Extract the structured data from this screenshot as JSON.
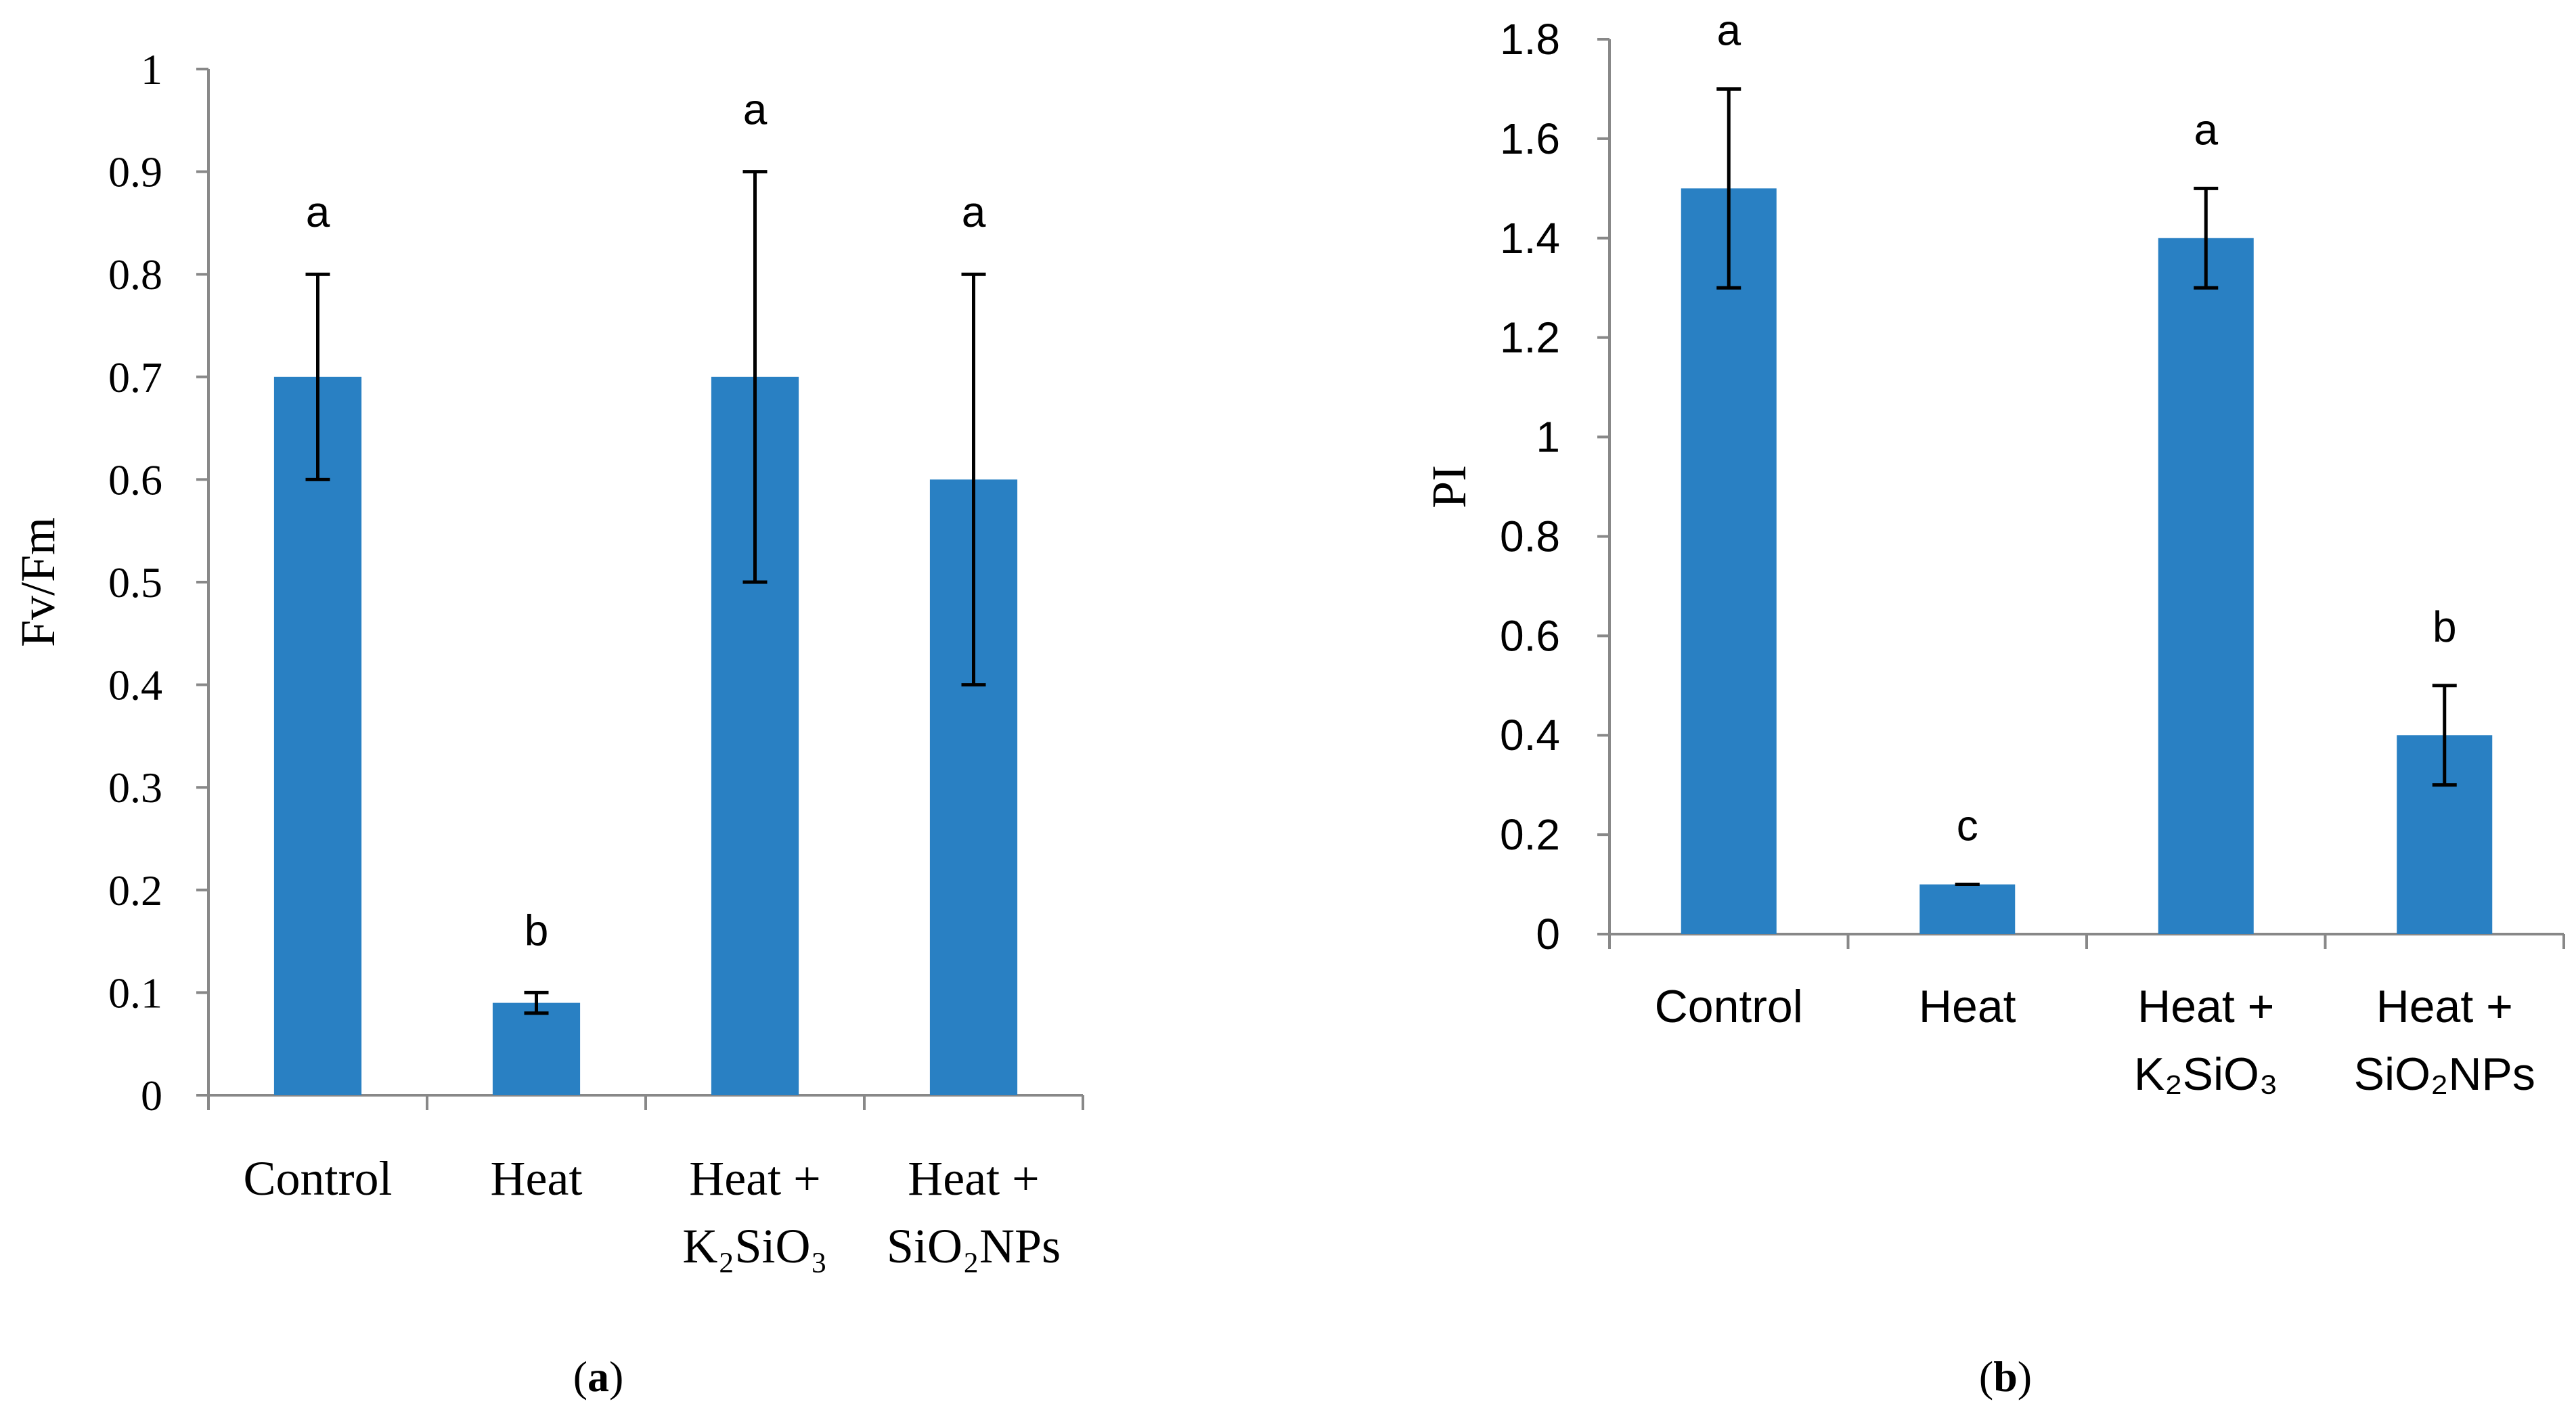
{
  "colors": {
    "bar": "#2980c3",
    "axis": "#888888",
    "error": "#000000"
  },
  "chart_data": [
    {
      "type": "bar",
      "panel_label": "a",
      "title": "",
      "xlabel": "",
      "ylabel": "Fv/Fm",
      "ylim": [
        0,
        1
      ],
      "ytick_step": 0.1,
      "yticks": [
        "0",
        "0.1",
        "0.2",
        "0.3",
        "0.4",
        "0.5",
        "0.6",
        "0.7",
        "0.8",
        "0.9",
        "1"
      ],
      "categories": [
        [
          "Control"
        ],
        [
          "Heat"
        ],
        [
          "Heat +",
          "K₂SiO₃"
        ],
        [
          "Heat +",
          "SiO₂NPs"
        ]
      ],
      "values": [
        0.7,
        0.09,
        0.7,
        0.6
      ],
      "errors": [
        0.1,
        0.01,
        0.2,
        0.2
      ],
      "significance_letters": [
        "a",
        "b",
        "a",
        "a"
      ],
      "font_style": "serif"
    },
    {
      "type": "bar",
      "panel_label": "b",
      "title": "",
      "xlabel": "",
      "ylabel": "PI",
      "ylim": [
        0,
        1.8
      ],
      "ytick_step": 0.2,
      "yticks": [
        "0",
        "0.2",
        "0.4",
        "0.6",
        "0.8",
        "1",
        "1.2",
        "1.4",
        "1.6",
        "1.8"
      ],
      "categories": [
        [
          "Control"
        ],
        [
          "Heat"
        ],
        [
          "Heat +",
          "K₂SiO₃"
        ],
        [
          "Heat +",
          "SiO₂NPs"
        ]
      ],
      "values": [
        1.5,
        0.1,
        1.4,
        0.4
      ],
      "errors": [
        0.2,
        0.0,
        0.1,
        0.1
      ],
      "significance_letters": [
        "a",
        "c",
        "a",
        "b"
      ],
      "font_style": "sans"
    }
  ]
}
